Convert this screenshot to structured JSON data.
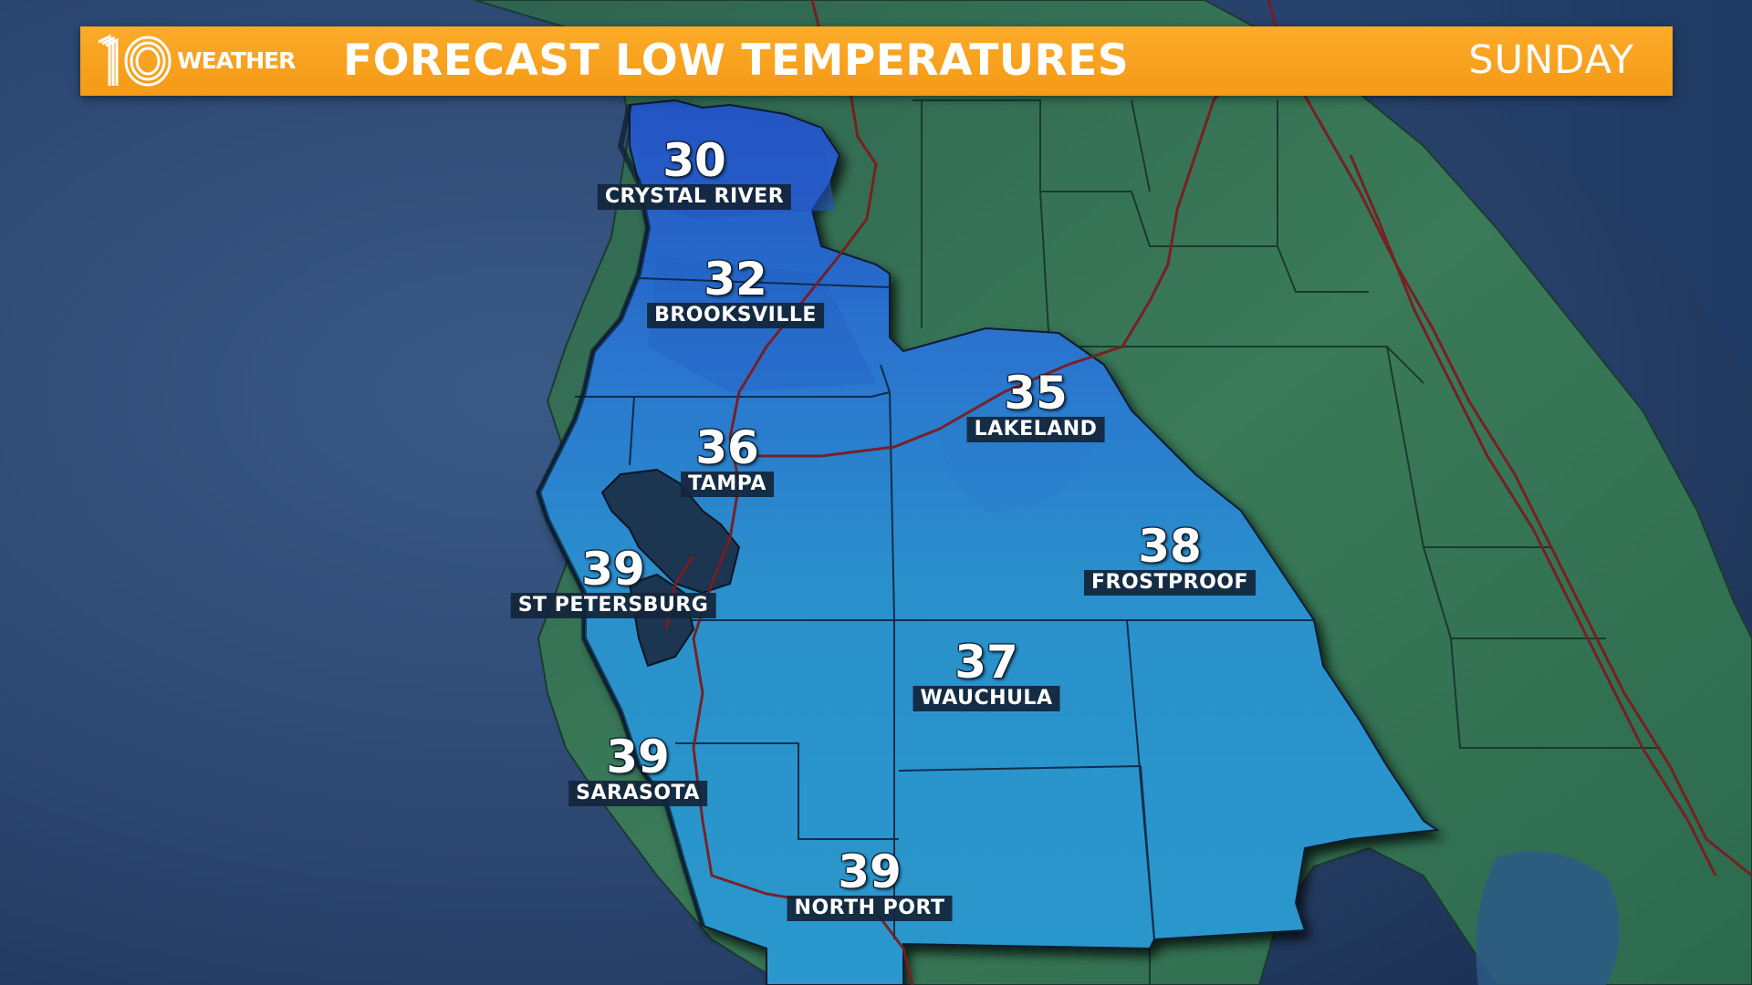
{
  "banner": {
    "logo_number": "10",
    "logo_word": "WEATHER",
    "title": "FORECAST LOW TEMPERATURES",
    "day": "SUNDAY",
    "color": "#f7a21c"
  },
  "colors": {
    "ocean": "#2a4468",
    "land": "#2f6a55",
    "forecast_region_cold": "#2b62c4",
    "forecast_region_cool": "#2a8fc9",
    "highway": "#8a1f22"
  },
  "cities": [
    {
      "name": "CRYSTAL RIVER",
      "temp": "30"
    },
    {
      "name": "BROOKSVILLE",
      "temp": "32"
    },
    {
      "name": "TAMPA",
      "temp": "36"
    },
    {
      "name": "LAKELAND",
      "temp": "35"
    },
    {
      "name": "ST PETERSBURG",
      "temp": "39"
    },
    {
      "name": "FROSTPROOF",
      "temp": "38"
    },
    {
      "name": "WAUCHULA",
      "temp": "37"
    },
    {
      "name": "SARASOTA",
      "temp": "39"
    },
    {
      "name": "NORTH PORT",
      "temp": "39"
    }
  ]
}
